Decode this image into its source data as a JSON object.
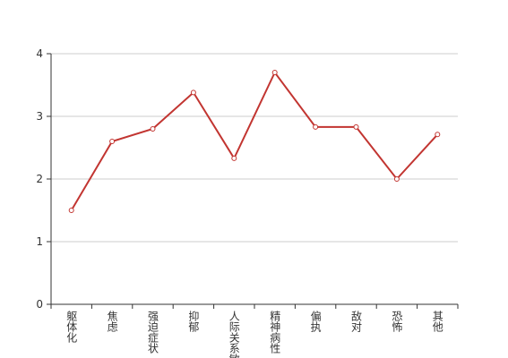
{
  "chart_data": {
    "type": "line",
    "categories": [
      "躯体化",
      "焦虑",
      "强迫症状",
      "抑郁",
      "人际关系敏感",
      "精神病性",
      "偏执",
      "敌对",
      "恐怖",
      "其他"
    ],
    "series": [
      {
        "color": "#c23531",
        "values": [
          1.5,
          2.6,
          2.8,
          3.38,
          2.33,
          3.7,
          2.83,
          2.83,
          2.0,
          2.71
        ]
      }
    ],
    "ylim": [
      0,
      4
    ],
    "yticks": [
      0,
      1,
      2,
      3,
      4
    ],
    "grid": true
  }
}
